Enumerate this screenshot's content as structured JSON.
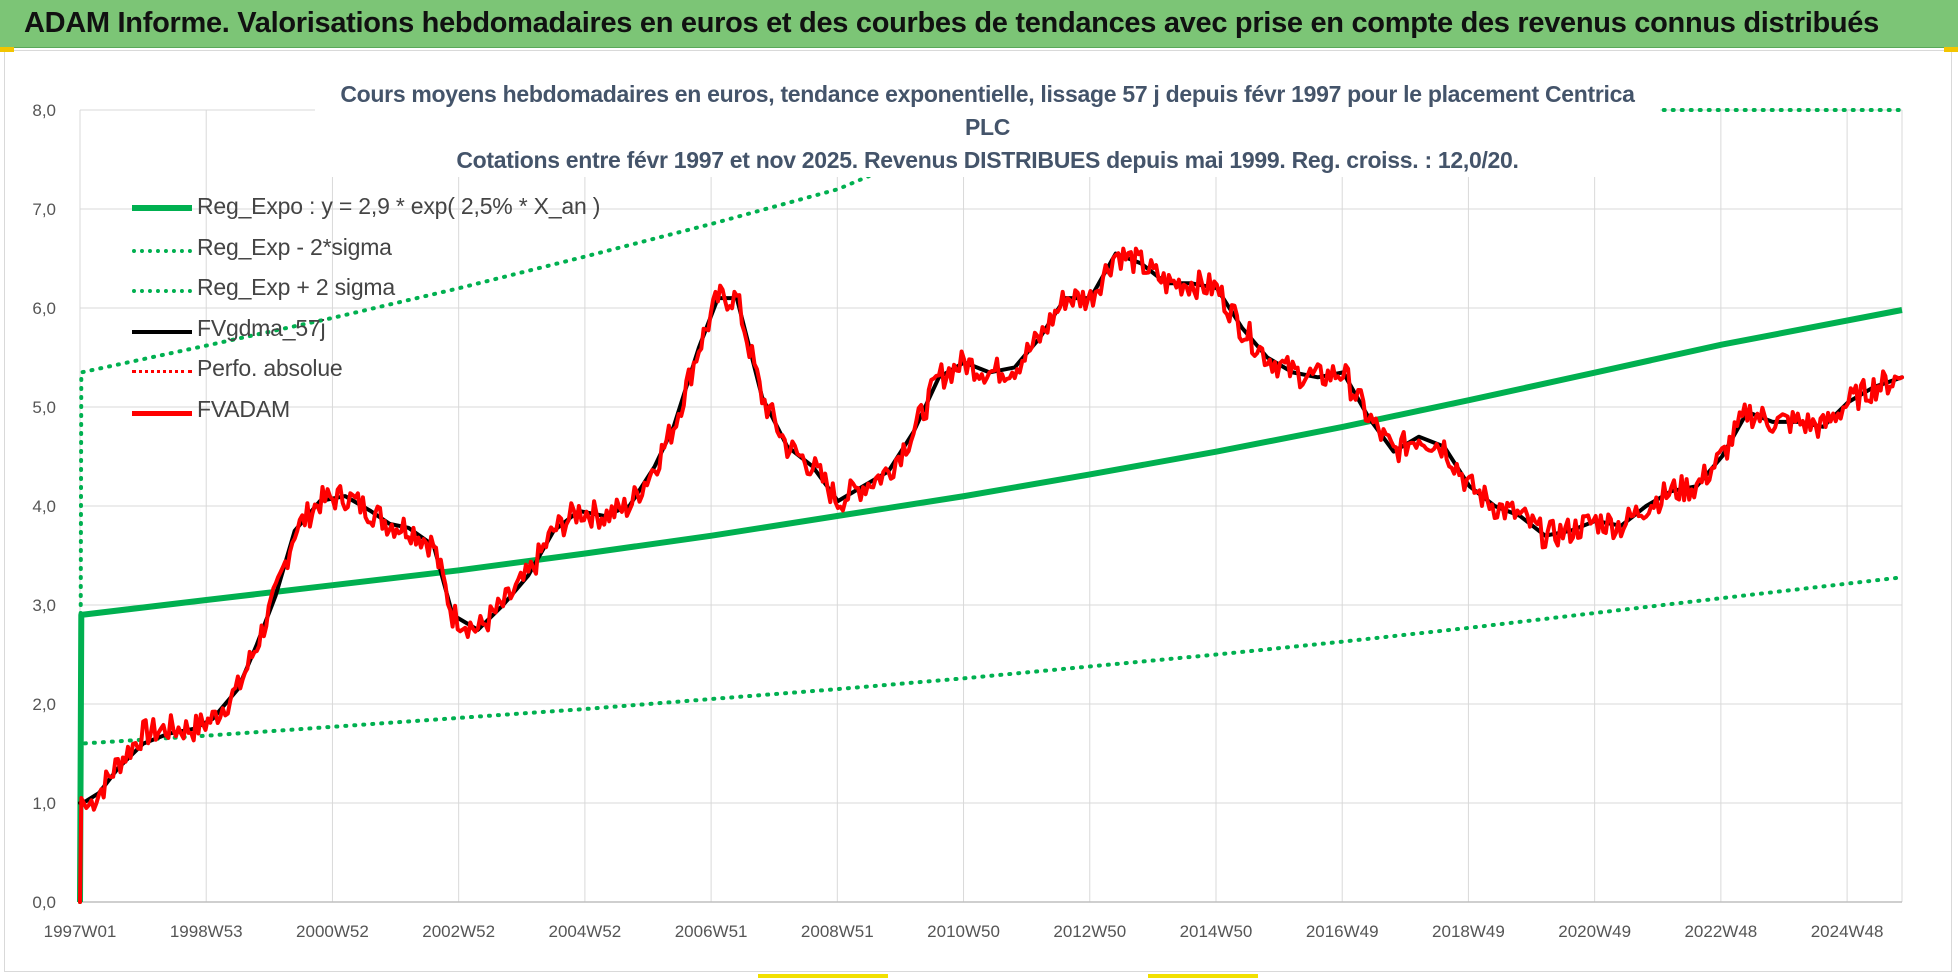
{
  "banner": {
    "title": "ADAM Informe. Valorisations hebdomadaires en euros et des courbes de tendances avec prise en compte des revenus connus distribués"
  },
  "colors": {
    "banner_bg": "#7cc576",
    "trend_green": "#00b050",
    "sigma_green": "#00b050",
    "fvgdma_black": "#000000",
    "fvadam_red": "#ff0000",
    "perfo_red": "#ff0000",
    "title_color": "#44546a",
    "grid": "#d9d9d9"
  },
  "chart_data": {
    "type": "line",
    "title": "Cours moyens hebdomadaires en euros, tendance exponentielle, lissage 57 j depuis févr 1997 pour le placement Centrica PLC",
    "subtitle": "Cotations entre févr 1997 et nov 2025. Revenus DISTRIBUES depuis mai 1999. Reg. croiss. : 12,0/20.",
    "x_tick_labels": [
      "1997W01",
      "1998W53",
      "2000W52",
      "2002W52",
      "2004W52",
      "2006W51",
      "2008W51",
      "2010W50",
      "2012W50",
      "2014W50",
      "2016W49",
      "2018W49",
      "2020W49",
      "2022W48",
      "2024W48"
    ],
    "x_range": [
      1997.0,
      2025.85
    ],
    "y_tick_labels": [
      "0,0",
      "1,0",
      "2,0",
      "3,0",
      "4,0",
      "5,0",
      "6,0",
      "7,0",
      "8,0"
    ],
    "ylim": [
      0,
      8
    ],
    "grid": true,
    "legend_position": "top-left",
    "legend": [
      {
        "label": "Reg_Expo : y = 2,9 * exp( 2,5% *  X_an )",
        "style": "solid-thick",
        "color": "#00b050"
      },
      {
        "label": "Reg_Exp - 2*sigma",
        "style": "dotted",
        "color": "#00b050"
      },
      {
        "label": "Reg_Exp + 2 sigma",
        "style": "dotted",
        "color": "#00b050"
      },
      {
        "label": "FVgdma_57j",
        "style": "solid",
        "color": "#000000"
      },
      {
        "label": "Perfo. absolue",
        "style": "dotted",
        "color": "#ff0000"
      },
      {
        "label": "FVADAM",
        "style": "solid-thick",
        "color": "#ff0000"
      }
    ],
    "series": [
      {
        "name": "Reg_Expo : y = 2,9 * exp( 2,5% *  X_an )",
        "x": [
          1997.0,
          1997.02,
          1999,
          2001,
          2003,
          2005,
          2007,
          2009,
          2011,
          2013,
          2015,
          2017,
          2019,
          2021,
          2023,
          2025.85
        ],
        "values": [
          0,
          2.9,
          3.05,
          3.2,
          3.35,
          3.52,
          3.7,
          3.9,
          4.1,
          4.32,
          4.55,
          4.8,
          5.07,
          5.35,
          5.63,
          5.98
        ]
      },
      {
        "name": "Reg_Exp - 2*sigma",
        "x": [
          1997.0,
          1997.02,
          1999,
          2001,
          2003,
          2005,
          2007,
          2009,
          2011,
          2013,
          2015,
          2017,
          2019,
          2021,
          2023,
          2025.85
        ],
        "values": [
          0,
          1.6,
          1.68,
          1.77,
          1.86,
          1.95,
          2.05,
          2.15,
          2.26,
          2.38,
          2.5,
          2.63,
          2.77,
          2.92,
          3.07,
          3.28
        ]
      },
      {
        "name": "Reg_Exp + 2 sigma",
        "x": [
          1997.0,
          1997.02,
          1999,
          2001,
          2003,
          2005,
          2007,
          2009,
          2010.3,
          2011.8,
          2025.85
        ],
        "values": [
          0,
          5.35,
          5.62,
          5.9,
          6.2,
          6.52,
          6.85,
          7.2,
          7.55,
          8.0,
          8.0
        ]
      },
      {
        "name": "FVgdma_57j",
        "x": [
          1997.0,
          1997.1,
          1997.3,
          1997.6,
          1998.0,
          1998.4,
          1998.8,
          1999.1,
          1999.5,
          1999.8,
          2000.1,
          2000.4,
          2000.8,
          2001.2,
          2001.6,
          2001.9,
          2002.2,
          2002.6,
          2002.9,
          2003.3,
          2003.7,
          2004.1,
          2004.5,
          2004.9,
          2005.3,
          2005.7,
          2006.1,
          2006.4,
          2006.8,
          2007.1,
          2007.4,
          2007.8,
          2008.2,
          2008.6,
          2009.0,
          2009.4,
          2009.8,
          2010.2,
          2010.6,
          2011.0,
          2011.4,
          2011.8,
          2012.2,
          2012.6,
          2013.0,
          2013.4,
          2013.8,
          2014.2,
          2014.6,
          2015.0,
          2015.4,
          2015.8,
          2016.2,
          2016.6,
          2017.0,
          2017.4,
          2017.8,
          2018.2,
          2018.6,
          2019.0,
          2019.4,
          2019.8,
          2020.2,
          2020.6,
          2021.0,
          2021.4,
          2021.8,
          2022.2,
          2022.6,
          2023.0,
          2023.4,
          2023.8,
          2024.2,
          2024.6,
          2025.0,
          2025.4,
          2025.85
        ],
        "values": [
          1.0,
          1.02,
          1.1,
          1.35,
          1.6,
          1.7,
          1.75,
          1.85,
          2.15,
          2.6,
          3.1,
          3.75,
          4.05,
          4.1,
          3.95,
          3.82,
          3.78,
          3.6,
          2.9,
          2.75,
          3.0,
          3.3,
          3.75,
          3.95,
          3.9,
          4.0,
          4.4,
          4.8,
          5.6,
          6.1,
          6.1,
          5.1,
          4.6,
          4.4,
          4.05,
          4.2,
          4.35,
          4.75,
          5.3,
          5.45,
          5.35,
          5.4,
          5.7,
          6.1,
          6.1,
          6.55,
          6.45,
          6.25,
          6.25,
          6.2,
          5.8,
          5.5,
          5.35,
          5.3,
          5.35,
          4.9,
          4.55,
          4.7,
          4.6,
          4.2,
          4.0,
          3.9,
          3.7,
          3.75,
          3.85,
          3.8,
          4.0,
          4.15,
          4.2,
          4.5,
          4.95,
          4.85,
          4.85,
          4.8,
          5.05,
          5.2,
          5.3
        ]
      },
      {
        "name": "FVADAM",
        "x": [
          1997.0,
          1997.02,
          1997.1,
          1997.3,
          1997.6,
          1998.0,
          1998.4,
          1998.8,
          1999.1,
          1999.5,
          1999.8,
          2000.1,
          2000.4,
          2000.8,
          2001.2,
          2001.6,
          2001.9,
          2002.2,
          2002.6,
          2002.9,
          2003.3,
          2003.7,
          2004.1,
          2004.5,
          2004.9,
          2005.3,
          2005.7,
          2006.1,
          2006.4,
          2006.8,
          2007.1,
          2007.4,
          2007.8,
          2008.2,
          2008.6,
          2009.0,
          2009.4,
          2009.8,
          2010.2,
          2010.6,
          2011.0,
          2011.4,
          2011.8,
          2012.2,
          2012.6,
          2013.0,
          2013.4,
          2013.8,
          2014.2,
          2014.6,
          2015.0,
          2015.4,
          2015.8,
          2016.2,
          2016.6,
          2017.0,
          2017.4,
          2017.8,
          2018.2,
          2018.6,
          2019.0,
          2019.4,
          2019.8,
          2020.2,
          2020.6,
          2021.0,
          2021.4,
          2021.8,
          2022.2,
          2022.6,
          2023.0,
          2023.4,
          2023.8,
          2024.2,
          2024.6,
          2025.0,
          2025.4,
          2025.85
        ],
        "values": [
          0,
          1.05,
          0.95,
          1.1,
          1.4,
          1.7,
          1.75,
          1.75,
          1.85,
          2.15,
          2.6,
          3.1,
          3.75,
          4.05,
          4.1,
          3.95,
          3.82,
          3.78,
          3.6,
          2.9,
          2.75,
          3.0,
          3.3,
          3.75,
          3.95,
          3.9,
          4.0,
          4.4,
          4.8,
          5.6,
          6.1,
          6.1,
          5.1,
          4.6,
          4.4,
          4.05,
          4.2,
          4.35,
          4.75,
          5.3,
          5.45,
          5.35,
          5.4,
          5.7,
          6.1,
          6.1,
          6.55,
          6.45,
          6.25,
          6.25,
          6.2,
          5.8,
          5.5,
          5.35,
          5.3,
          5.35,
          4.9,
          4.55,
          4.7,
          4.6,
          4.2,
          4.0,
          3.9,
          3.7,
          3.75,
          3.85,
          3.8,
          4.0,
          4.15,
          4.2,
          4.5,
          4.95,
          4.85,
          4.85,
          4.8,
          5.05,
          5.2,
          5.3
        ]
      }
    ]
  }
}
